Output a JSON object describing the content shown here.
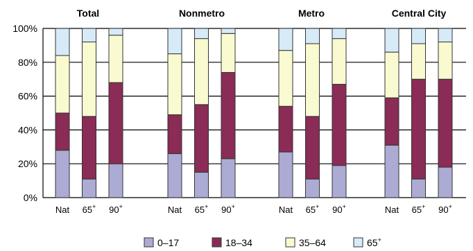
{
  "chart_data": {
    "type": "bar",
    "stacked": true,
    "groups": [
      {
        "title": "Total",
        "categories": [
          {
            "base": "Nat",
            "sup": ""
          },
          {
            "base": "65",
            "sup": "+"
          },
          {
            "base": "90",
            "sup": "+"
          }
        ],
        "values": [
          [
            28,
            22,
            34,
            16
          ],
          [
            11,
            37,
            44,
            8
          ],
          [
            20,
            48,
            28,
            4
          ]
        ]
      },
      {
        "title": "Nonmetro",
        "categories": [
          {
            "base": "Nat",
            "sup": ""
          },
          {
            "base": "65",
            "sup": "+"
          },
          {
            "base": "90",
            "sup": "+"
          }
        ],
        "values": [
          [
            26,
            23,
            36,
            15
          ],
          [
            15,
            40,
            39,
            6
          ],
          [
            23,
            51,
            23,
            3
          ]
        ]
      },
      {
        "title": "Metro",
        "categories": [
          {
            "base": "Nat",
            "sup": ""
          },
          {
            "base": "65",
            "sup": "+"
          },
          {
            "base": "90",
            "sup": "+"
          }
        ],
        "values": [
          [
            27,
            27,
            33,
            13
          ],
          [
            11,
            37,
            43,
            9
          ],
          [
            19,
            48,
            27,
            6
          ]
        ]
      },
      {
        "title": "Central City",
        "categories": [
          {
            "base": "Nat",
            "sup": ""
          },
          {
            "base": "65",
            "sup": "+"
          },
          {
            "base": "90",
            "sup": "+"
          }
        ],
        "values": [
          [
            31,
            28,
            27,
            14
          ],
          [
            11,
            59,
            21,
            9
          ],
          [
            18,
            52,
            22,
            8
          ]
        ]
      }
    ],
    "series": [
      {
        "name": "0–17",
        "color": "#ababd4"
      },
      {
        "name": "18–34",
        "color": "#8a2c55"
      },
      {
        "name": "35–64",
        "color": "#fafad0"
      },
      {
        "name": "65",
        "name_sup": "+",
        "color": "#d6eaf8"
      }
    ],
    "y_ticks": [
      "0%",
      "20%",
      "40%",
      "60%",
      "80%",
      "100%"
    ],
    "ylim": [
      0,
      100
    ],
    "grid": "horizontal",
    "legend_position": "bottom"
  }
}
